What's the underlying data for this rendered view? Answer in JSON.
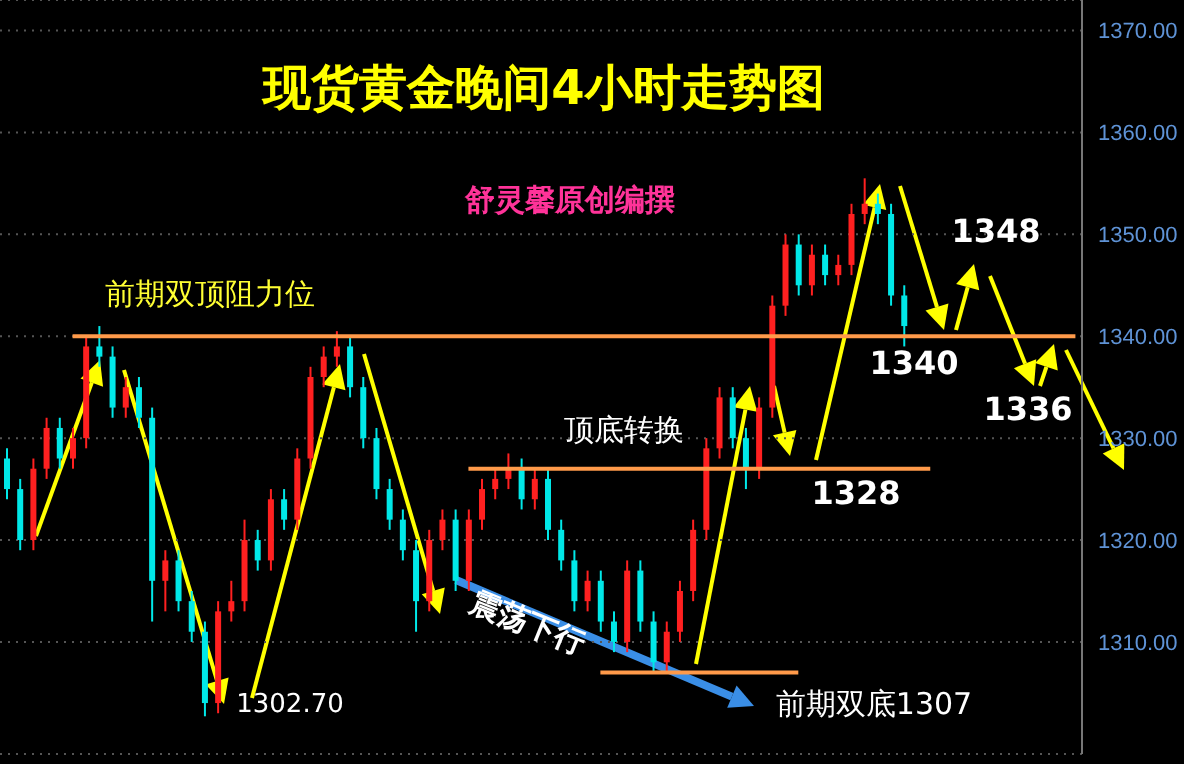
{
  "chart_data": {
    "type": "candlestick",
    "title": "现货黄金晚间4小时走势图",
    "subtitle": "舒灵馨原创编撰",
    "categories": [
      null,
      null,
      null,
      null,
      null,
      null,
      null,
      null,
      null,
      null,
      null,
      null,
      null,
      null,
      null,
      null,
      null,
      null,
      null,
      null,
      null,
      null,
      null,
      null,
      null,
      null,
      null,
      null,
      null,
      null,
      null,
      null,
      null,
      null,
      null,
      null,
      null,
      null,
      null,
      null,
      null,
      null,
      null,
      null,
      null,
      null,
      null,
      null,
      null,
      null,
      null,
      null,
      null,
      null,
      null,
      null,
      null,
      null,
      null,
      null,
      null,
      null,
      null,
      null,
      null,
      null,
      null,
      null,
      null,
      null,
      null,
      null,
      null,
      null,
      null,
      null,
      null,
      null,
      null,
      null,
      null,
      null
    ],
    "ohlc": [
      [
        1328,
        1329,
        1324,
        1325
      ],
      [
        1325,
        1326,
        1319,
        1320
      ],
      [
        1320,
        1328,
        1319,
        1327
      ],
      [
        1327,
        1332,
        1326,
        1331
      ],
      [
        1331,
        1332,
        1327,
        1328
      ],
      [
        1328,
        1331,
        1327,
        1330
      ],
      [
        1330,
        1340,
        1329,
        1339
      ],
      [
        1339,
        1341,
        1337,
        1338
      ],
      [
        1338,
        1339,
        1332,
        1333
      ],
      [
        1333,
        1336,
        1332,
        1335
      ],
      [
        1335,
        1336,
        1331,
        1332
      ],
      [
        1332,
        1333,
        1312,
        1316
      ],
      [
        1316,
        1319,
        1313,
        1318
      ],
      [
        1318,
        1319,
        1313,
        1314
      ],
      [
        1314,
        1315,
        1310,
        1311
      ],
      [
        1311,
        1312,
        1302.7,
        1304
      ],
      [
        1304,
        1314,
        1303,
        1313
      ],
      [
        1313,
        1316,
        1312,
        1314
      ],
      [
        1314,
        1322,
        1313,
        1320
      ],
      [
        1320,
        1321,
        1317,
        1318
      ],
      [
        1318,
        1325,
        1317,
        1324
      ],
      [
        1324,
        1325,
        1321,
        1322
      ],
      [
        1322,
        1329,
        1321,
        1328
      ],
      [
        1328,
        1337,
        1327,
        1336
      ],
      [
        1336,
        1339,
        1335,
        1338
      ],
      [
        1338,
        1340.5,
        1337,
        1339
      ],
      [
        1339,
        1340,
        1334,
        1335
      ],
      [
        1335,
        1336,
        1329,
        1330
      ],
      [
        1330,
        1331,
        1324,
        1325
      ],
      [
        1325,
        1326,
        1321,
        1322
      ],
      [
        1322,
        1323,
        1318,
        1319
      ],
      [
        1319,
        1320,
        1311,
        1314
      ],
      [
        1314,
        1321,
        1313,
        1320
      ],
      [
        1320,
        1323,
        1319,
        1322
      ],
      [
        1322,
        1323,
        1315,
        1316
      ],
      [
        1316,
        1323,
        1315,
        1322
      ],
      [
        1322,
        1326,
        1321,
        1325
      ],
      [
        1325,
        1327,
        1324,
        1326
      ],
      [
        1326,
        1328.5,
        1325,
        1327
      ],
      [
        1327,
        1328,
        1323,
        1324
      ],
      [
        1324,
        1327,
        1323,
        1326
      ],
      [
        1326,
        1327,
        1320,
        1321
      ],
      [
        1321,
        1322,
        1317,
        1318
      ],
      [
        1318,
        1319,
        1313,
        1314
      ],
      [
        1314,
        1317,
        1313,
        1316
      ],
      [
        1316,
        1317,
        1311,
        1312
      ],
      [
        1312,
        1313,
        1309,
        1310
      ],
      [
        1310,
        1318,
        1309,
        1317
      ],
      [
        1317,
        1318,
        1311,
        1312
      ],
      [
        1312,
        1313,
        1307,
        1308
      ],
      [
        1308,
        1312,
        1307,
        1311
      ],
      [
        1311,
        1316,
        1310,
        1315
      ],
      [
        1315,
        1322,
        1314,
        1321
      ],
      [
        1321,
        1330,
        1320,
        1329
      ],
      [
        1329,
        1335,
        1328,
        1334
      ],
      [
        1334,
        1335,
        1329,
        1330
      ],
      [
        1330,
        1331,
        1325,
        1327
      ],
      [
        1327,
        1334,
        1326,
        1333
      ],
      [
        1333,
        1344,
        1332,
        1343
      ],
      [
        1343,
        1350,
        1342,
        1349
      ],
      [
        1349,
        1350,
        1344,
        1345
      ],
      [
        1345,
        1349,
        1344,
        1348
      ],
      [
        1348,
        1349,
        1345,
        1346
      ],
      [
        1346,
        1348,
        1345,
        1347
      ],
      [
        1347,
        1353,
        1346,
        1352
      ],
      [
        1352,
        1355.5,
        1351,
        1353
      ],
      [
        1353,
        1354,
        1351,
        1352
      ],
      [
        1352,
        1353,
        1343,
        1344
      ],
      [
        1344,
        1345,
        1339,
        1341
      ],
      null,
      null,
      null,
      null,
      null,
      null,
      null,
      null,
      null,
      null,
      null,
      null,
      null
    ],
    "colors": [
      "#00e8e8",
      "#00e8e8",
      "#ff2020",
      "#ff2020",
      "#00e8e8",
      "#ff2020",
      "#ff2020",
      "#00e8e8",
      "#00e8e8",
      "#ff2020",
      "#00e8e8",
      "#00e8e8",
      "#ff2020",
      "#00e8e8",
      "#00e8e8",
      "#00e8e8",
      "#ff2020",
      "#ff2020",
      "#ff2020",
      "#00e8e8",
      "#ff2020",
      "#00e8e8",
      "#ff2020",
      "#ff2020",
      "#ff2020",
      "#ff2020",
      "#00e8e8",
      "#00e8e8",
      "#00e8e8",
      "#00e8e8",
      "#00e8e8",
      "#00e8e8",
      "#ff2020",
      "#ff2020",
      "#00e8e8",
      "#ff2020",
      "#ff2020",
      "#ff2020",
      "#ff2020",
      "#00e8e8",
      "#ff2020",
      "#00e8e8",
      "#00e8e8",
      "#00e8e8",
      "#ff2020",
      "#00e8e8",
      "#00e8e8",
      "#ff2020",
      "#00e8e8",
      "#00e8e8",
      "#ff2020",
      "#ff2020",
      "#ff2020",
      "#ff2020",
      "#ff2020",
      "#00e8e8",
      "#00e8e8",
      "#ff2020",
      "#ff2020",
      "#ff2020",
      "#00e8e8",
      "#ff2020",
      "#00e8e8",
      "#ff2020",
      "#ff2020",
      "#ff2020",
      "#00e8e8",
      "#00e8e8",
      "#00e8e8",
      null,
      null,
      null,
      null,
      null,
      null,
      null,
      null,
      null,
      null,
      null,
      null,
      null
    ],
    "ylim": [
      1299,
      1373
    ],
    "yticks": [
      {
        "value": 1310,
        "label": "1310.00"
      },
      {
        "value": 1320,
        "label": "1320.00"
      },
      {
        "value": 1330,
        "label": "1330.00"
      },
      {
        "value": 1340,
        "label": "1340.00"
      },
      {
        "value": 1350,
        "label": "1350.00"
      },
      {
        "value": 1360,
        "label": "1360.00"
      },
      {
        "value": 1370,
        "label": "1370.00"
      }
    ],
    "grid": "y",
    "tick_labels": "y",
    "ref_lines": [
      {
        "axis": "y",
        "value": 1340,
        "label": "前期双顶阻力位",
        "color": "#ff9a4a"
      },
      {
        "axis": "y",
        "value": 1327,
        "label": "顶底转换",
        "color": "#ff9a4a"
      },
      {
        "axis": "y",
        "value": 1307,
        "label": "前期双底1307",
        "color": "#ff9a4a"
      }
    ],
    "annotations": [
      "1302.70",
      "震荡下行",
      "1328",
      "1340",
      "1348",
      "1336"
    ]
  }
}
